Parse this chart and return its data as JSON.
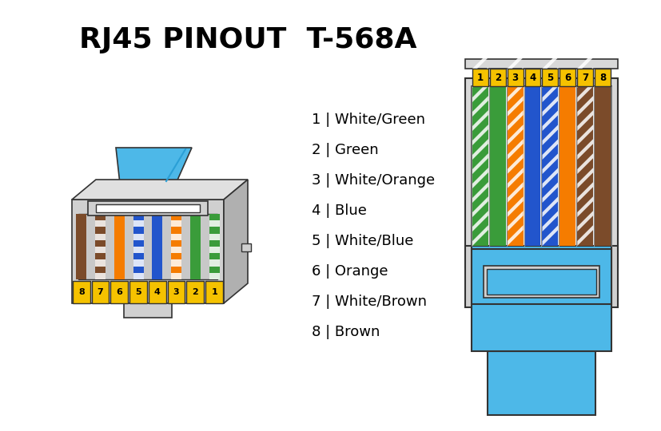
{
  "title": "RJ45 PINOUT  T-568A",
  "title_fontsize": 26,
  "title_fontweight": "bold",
  "bg_color": "#ffffff",
  "pin_labels": [
    "1",
    "2",
    "3",
    "4",
    "5",
    "6",
    "7",
    "8"
  ],
  "pin_names": [
    "White/Green",
    "Green",
    "White/Orange",
    "Blue",
    "White/Blue",
    "Orange",
    "White/Brown",
    "Brown"
  ],
  "wire_colors": [
    [
      "#ffffff",
      "#3a9c3a"
    ],
    [
      "#3a9c3a",
      "#3a9c3a"
    ],
    [
      "#ffffff",
      "#f57c00"
    ],
    [
      "#2255cc",
      "#2255cc"
    ],
    [
      "#ffffff",
      "#2255cc"
    ],
    [
      "#f57c00",
      "#f57c00"
    ],
    [
      "#ffffff",
      "#7b4b2a"
    ],
    [
      "#7b4b2a",
      "#7b4b2a"
    ]
  ],
  "yellow": "#f5c200",
  "light_gray": "#d0d0d0",
  "mid_gray": "#b0b0b0",
  "blue_cable": "#4db8e8",
  "dark_border": "#333333",
  "text_color": "#000000"
}
